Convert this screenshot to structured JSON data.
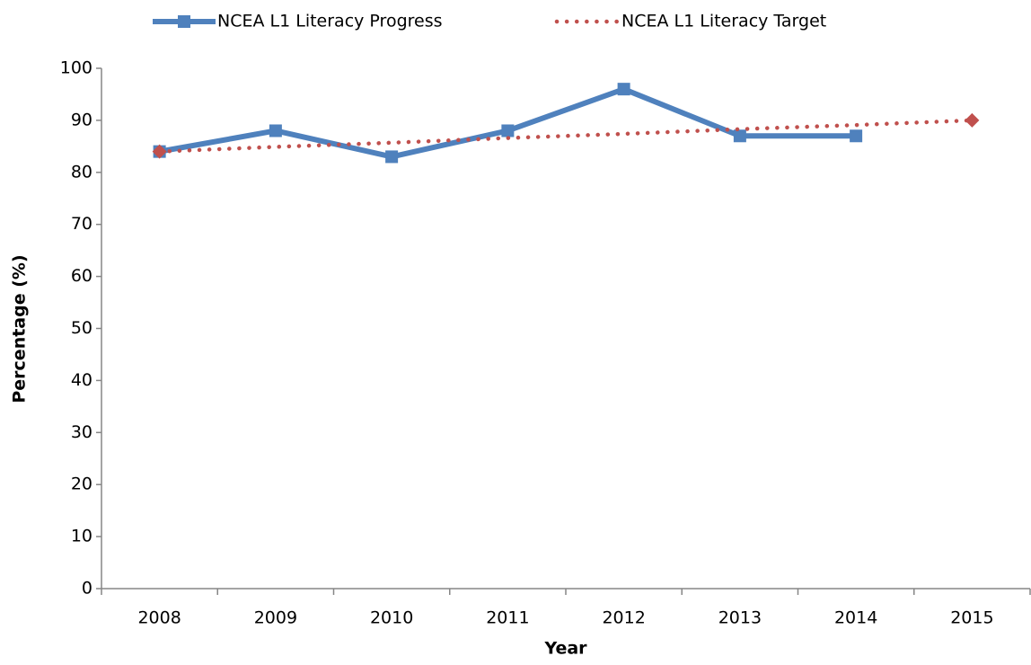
{
  "chart_data": {
    "type": "line",
    "x_label": "Year",
    "y_label": "Percentage (%)",
    "categories": [
      "2008",
      "2009",
      "2010",
      "2011",
      "2012",
      "2013",
      "2014",
      "2015"
    ],
    "series": [
      {
        "name": "NCEA L1 Literacy Progress",
        "color": "#4f81bd",
        "style": "solid",
        "marker": "square",
        "values": [
          84,
          88,
          83,
          88,
          96,
          87,
          87,
          null
        ]
      },
      {
        "name": "NCEA L1 Literacy Target",
        "color": "#c0504d",
        "style": "dotted",
        "marker": "diamond",
        "values": [
          84,
          84.9,
          85.7,
          86.6,
          87.4,
          88.3,
          89.1,
          90
        ]
      }
    ],
    "ylim": [
      0,
      100
    ],
    "yticks": [
      0,
      10,
      20,
      30,
      40,
      50,
      60,
      70,
      80,
      90,
      100
    ],
    "grid": false,
    "legend": "top"
  }
}
